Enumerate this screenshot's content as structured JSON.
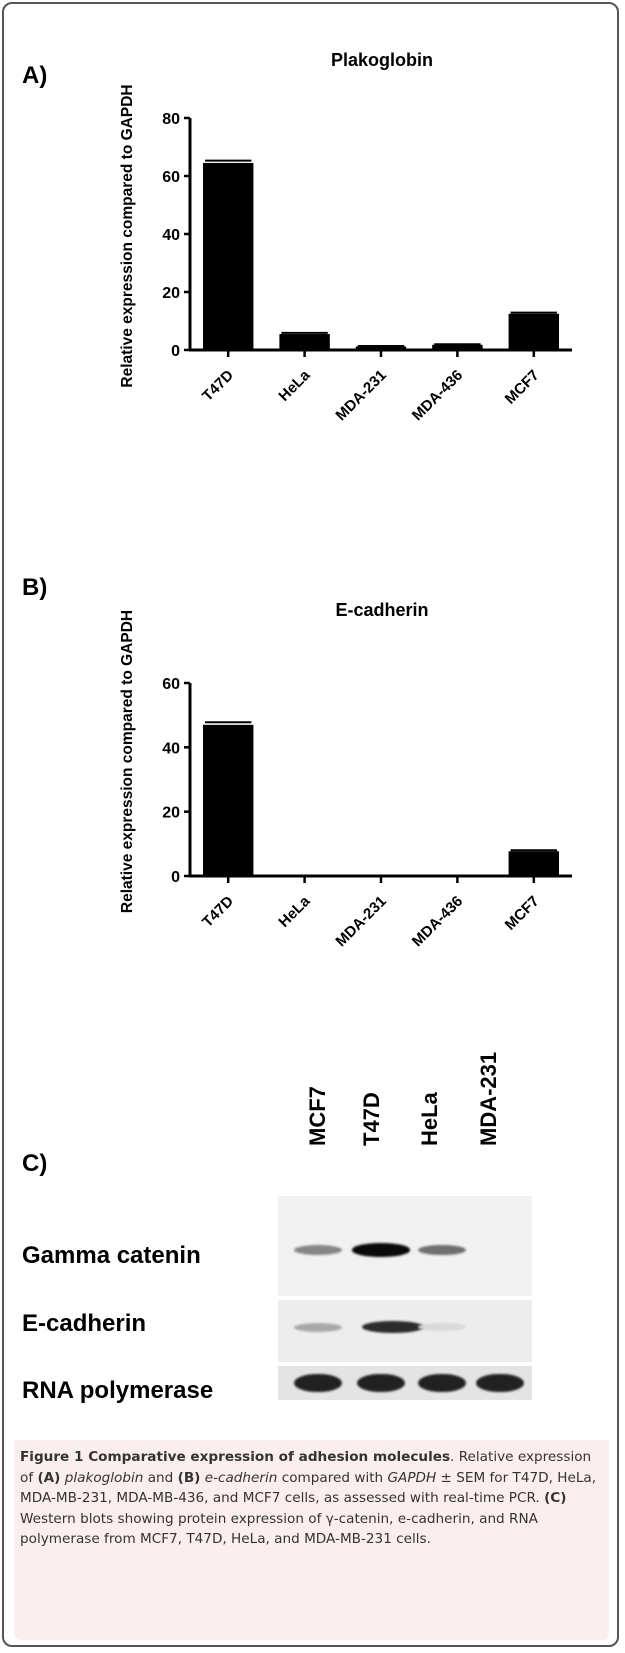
{
  "panels": {
    "a": "A)",
    "b": "B)",
    "c": "C)"
  },
  "chart_data": [
    {
      "type": "bar",
      "title": "Plakoglobin",
      "ylabel": "Relative expression compared to GAPDH",
      "xlabel": "",
      "categories": [
        "T47D",
        "HeLa",
        "MDA-231",
        "MDA-436",
        "MCF7"
      ],
      "values": [
        64.5,
        5.5,
        1.2,
        1.8,
        12.5
      ],
      "errors": [
        0.8,
        0.4,
        0.2,
        0.2,
        0.4
      ],
      "ylim": [
        0,
        80
      ],
      "yticks": [
        "0",
        "20",
        "40",
        "60",
        "80"
      ],
      "bar_color": "#000000"
    },
    {
      "type": "bar",
      "title": "E-cadherin",
      "ylabel": "Relative expression compared  to GAPDH",
      "xlabel": "",
      "categories": [
        "T47D",
        "HeLa",
        "MDA-231",
        "MDA-436",
        "MCF7"
      ],
      "values": [
        47,
        0,
        0,
        0,
        7.7
      ],
      "errors": [
        0.8,
        0,
        0,
        0,
        0.3
      ],
      "ylim": [
        0,
        60
      ],
      "yticks": [
        "0",
        "20",
        "40",
        "60"
      ],
      "bar_color": "#000000"
    }
  ],
  "blot": {
    "lanes": [
      "MCF7",
      "T47D",
      "HeLa",
      "MDA-231"
    ],
    "rows": [
      {
        "label": "Gamma catenin",
        "intensities": [
          0.45,
          1.0,
          0.55,
          0
        ]
      },
      {
        "label": "E-cadherin",
        "intensities": [
          0.3,
          0.85,
          0.08,
          0
        ]
      },
      {
        "label": "RNA polymerase",
        "intensities": [
          0.9,
          0.9,
          0.9,
          0.9
        ]
      }
    ]
  },
  "caption": {
    "title": "Figure 1 Comparative expression of adhesion molecules",
    "p1": "Relative expression of ",
    "a_tag": "(A)",
    "plakoglobin": "plakoglobin",
    "and": " and ",
    "b_tag": "(B)",
    "ecadherin": "e-cadherin",
    "p2": " compared with ",
    "gapdh": "GAPDH",
    "p3": " ± SEM for T47D, HeLa, MDA-MB-231, MDA-MB-436, and MCF7 cells, as assessed with real-time PCR. ",
    "c_tag": "(C)",
    "p4": " Western blots showing protein expression of γ-catenin, e-cadherin, and RNA polymerase from MCF7, T47D, HeLa, and MDA-MB-231 cells."
  }
}
